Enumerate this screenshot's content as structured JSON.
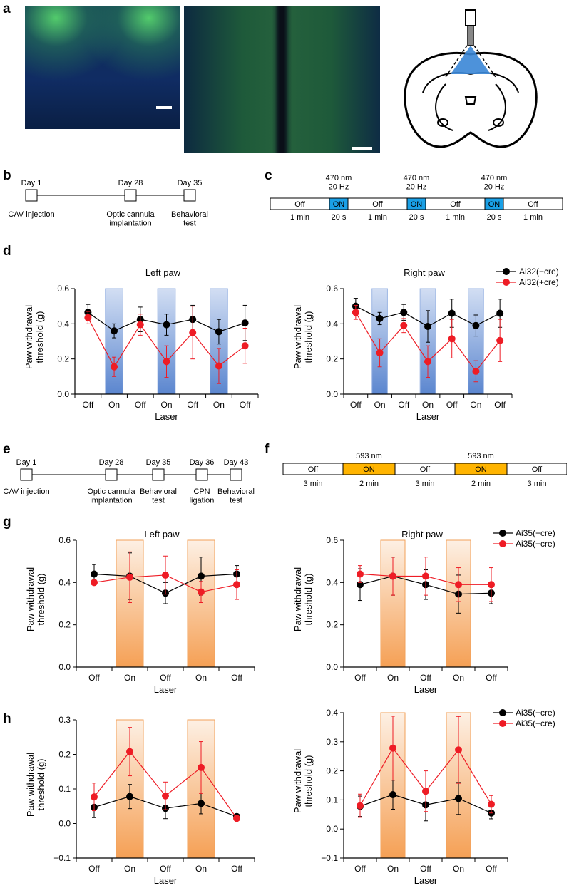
{
  "panel_labels": {
    "a": "a",
    "b": "b",
    "c": "c",
    "d": "d",
    "e": "e",
    "f": "f",
    "g": "g",
    "h": "h"
  },
  "colors": {
    "black_series": "#000000",
    "red_series": "#ee1c25",
    "blue_box": "#1aa0e6",
    "orange_box": "#ffb400",
    "blue_shade": "#4a79c9",
    "orange_shade": "#f59a45"
  },
  "timeline_b": {
    "days": [
      "Day 1",
      "Day 28",
      "Day 35"
    ],
    "events": [
      "CAV injection",
      "Optic cannula\nimplantation",
      "Behavioral\ntest"
    ]
  },
  "protocol_c": {
    "segments": [
      {
        "label": "Off",
        "time": "1 min",
        "type": "off"
      },
      {
        "label": "ON",
        "time": "20 s",
        "type": "on",
        "stim": "470 nm\n20 Hz"
      },
      {
        "label": "Off",
        "time": "1 min",
        "type": "off"
      },
      {
        "label": "ON",
        "time": "20 s",
        "type": "on",
        "stim": "470 nm\n20 Hz"
      },
      {
        "label": "Off",
        "time": "1 min",
        "type": "off"
      },
      {
        "label": "ON",
        "time": "20 s",
        "type": "on",
        "stim": "470 nm\n20 Hz"
      },
      {
        "label": "Off",
        "time": "1 min",
        "type": "off"
      }
    ]
  },
  "timeline_e": {
    "days": [
      "Day 1",
      "Day 28",
      "Day 35",
      "Day 36",
      "Day 43"
    ],
    "events": [
      "CAV injection",
      "Optic cannula\nimplantation",
      "Behavioral\ntest",
      "CPN\nligation",
      "Behavioral\ntest"
    ]
  },
  "protocol_f": {
    "segments": [
      {
        "label": "Off",
        "time": "3 min",
        "type": "off"
      },
      {
        "label": "ON",
        "time": "2 min",
        "type": "on",
        "stim": "593 nm"
      },
      {
        "label": "Off",
        "time": "3 min",
        "type": "off"
      },
      {
        "label": "ON",
        "time": "2 min",
        "type": "on",
        "stim": "593 nm"
      },
      {
        "label": "Off",
        "time": "3 min",
        "type": "off"
      }
    ]
  },
  "chart_data": [
    {
      "id": "d-left",
      "type": "line",
      "title": "Left paw",
      "xlabel": "Laser",
      "ylabel": "Paw withdrawal\nthreshold (g)",
      "categories": [
        "Off",
        "On",
        "Off",
        "On",
        "Off",
        "On",
        "Off"
      ],
      "ylim": [
        0,
        0.6
      ],
      "yticks": [
        "0.0",
        "0.2",
        "0.4",
        "0.6"
      ],
      "shade": "blue",
      "on_index": [
        1,
        3,
        5
      ],
      "series": [
        {
          "name": "Ai32(−cre)",
          "color": "black",
          "values": [
            0.465,
            0.36,
            0.425,
            0.395,
            0.425,
            0.355,
            0.405
          ],
          "errors": [
            0.045,
            0.04,
            0.07,
            0.06,
            0.08,
            0.07,
            0.1
          ]
        },
        {
          "name": "Ai32(+cre)",
          "color": "red",
          "values": [
            0.435,
            0.155,
            0.395,
            0.185,
            0.35,
            0.16,
            0.275
          ],
          "errors": [
            0.035,
            0.055,
            0.06,
            0.09,
            0.15,
            0.1,
            0.1
          ]
        }
      ]
    },
    {
      "id": "d-right",
      "type": "line",
      "title": "Right paw",
      "xlabel": "Laser",
      "ylabel": "Paw withdrawal\nthreshold (g)",
      "categories": [
        "Off",
        "On",
        "Off",
        "On",
        "Off",
        "On",
        "Off"
      ],
      "ylim": [
        0,
        0.6
      ],
      "yticks": [
        "0.0",
        "0.2",
        "0.4",
        "0.6"
      ],
      "shade": "blue",
      "on_index": [
        1,
        3,
        5
      ],
      "legend": [
        "Ai32(−cre)",
        "Ai32(+cre)"
      ],
      "series": [
        {
          "name": "Ai32(−cre)",
          "color": "black",
          "values": [
            0.5,
            0.43,
            0.465,
            0.385,
            0.46,
            0.39,
            0.46
          ],
          "errors": [
            0.045,
            0.035,
            0.045,
            0.09,
            0.08,
            0.06,
            0.08
          ]
        },
        {
          "name": "Ai32(+cre)",
          "color": "red",
          "values": [
            0.465,
            0.235,
            0.39,
            0.185,
            0.315,
            0.13,
            0.305
          ],
          "errors": [
            0.04,
            0.08,
            0.04,
            0.09,
            0.11,
            0.06,
            0.12
          ]
        }
      ]
    },
    {
      "id": "g-left",
      "type": "line",
      "title": "Left paw",
      "xlabel": "Laser",
      "ylabel": "Paw withdrawal\nthreshold (g)",
      "categories": [
        "Off",
        "On",
        "Off",
        "On",
        "Off"
      ],
      "ylim": [
        0,
        0.6
      ],
      "yticks": [
        "0.0",
        "0.2",
        "0.4",
        "0.6"
      ],
      "shade": "orange",
      "on_index": [
        1,
        3
      ],
      "series": [
        {
          "name": "Ai35(−cre)",
          "color": "black",
          "values": [
            0.44,
            0.43,
            0.35,
            0.43,
            0.44
          ],
          "errors": [
            0.045,
            0.11,
            0.05,
            0.09,
            0.04
          ]
        },
        {
          "name": "Ai35(+cre)",
          "color": "red",
          "values": [
            0.4,
            0.425,
            0.435,
            0.355,
            0.39
          ],
          "errors": [
            0.0,
            0.12,
            0.09,
            0.05,
            0.07
          ]
        }
      ]
    },
    {
      "id": "g-right",
      "type": "line",
      "title": "Right paw",
      "xlabel": "Laser",
      "ylabel": "Paw withdrawal\nthreshold (g)",
      "categories": [
        "Off",
        "On",
        "Off",
        "On",
        "Off"
      ],
      "ylim": [
        0,
        0.6
      ],
      "yticks": [
        "0.0",
        "0.2",
        "0.4",
        "0.6"
      ],
      "shade": "orange",
      "on_index": [
        1,
        3
      ],
      "legend": [
        "Ai35(−cre)",
        "Ai35(+cre)"
      ],
      "series": [
        {
          "name": "Ai35(−cre)",
          "color": "black",
          "values": [
            0.39,
            0.43,
            0.39,
            0.345,
            0.35
          ],
          "errors": [
            0.075,
            0.09,
            0.07,
            0.09,
            0.05
          ]
        },
        {
          "name": "Ai35(+cre)",
          "color": "red",
          "values": [
            0.44,
            0.43,
            0.43,
            0.39,
            0.39
          ],
          "errors": [
            0.04,
            0.09,
            0.09,
            0.08,
            0.08
          ]
        }
      ]
    },
    {
      "id": "h-left",
      "type": "line",
      "title": "",
      "xlabel": "Laser",
      "ylabel": "Paw withdrawal\nthreshold (g)",
      "categories": [
        "Off",
        "On",
        "Off",
        "On",
        "Off"
      ],
      "ylim": [
        -0.1,
        0.3
      ],
      "yticks": [
        "−0.1",
        "0.0",
        "0.1",
        "0.2",
        "0.3"
      ],
      "shade": "orange",
      "on_index": [
        1,
        3
      ],
      "series": [
        {
          "name": "Ai35(−cre)",
          "color": "black",
          "values": [
            0.047,
            0.078,
            0.044,
            0.058,
            0.02
          ],
          "errors": [
            0.03,
            0.035,
            0.03,
            0.03,
            0.005
          ]
        },
        {
          "name": "Ai35(+cre)",
          "color": "red",
          "values": [
            0.077,
            0.208,
            0.08,
            0.162,
            0.015
          ],
          "errors": [
            0.04,
            0.07,
            0.04,
            0.075,
            0.005
          ]
        }
      ]
    },
    {
      "id": "h-right",
      "type": "line",
      "title": "",
      "xlabel": "Laser",
      "ylabel": "Paw withdrawal\nthreshold (g)",
      "categories": [
        "Off",
        "On",
        "Off",
        "On",
        "Off"
      ],
      "ylim": [
        -0.1,
        0.4
      ],
      "yticks": [
        "−0.1",
        "0.0",
        "0.1",
        "0.2",
        "0.3",
        "0.4"
      ],
      "shade": "orange",
      "on_index": [
        1,
        3
      ],
      "legend": [
        "Ai35(−cre)",
        "Ai35(+cre)"
      ],
      "series": [
        {
          "name": "Ai35(−cre)",
          "color": "black",
          "values": [
            0.078,
            0.118,
            0.083,
            0.105,
            0.055
          ],
          "errors": [
            0.035,
            0.05,
            0.055,
            0.055,
            0.02
          ]
        },
        {
          "name": "Ai35(+cre)",
          "color": "red",
          "values": [
            0.08,
            0.278,
            0.13,
            0.272,
            0.085
          ],
          "errors": [
            0.04,
            0.11,
            0.07,
            0.115,
            0.03
          ]
        }
      ]
    }
  ]
}
